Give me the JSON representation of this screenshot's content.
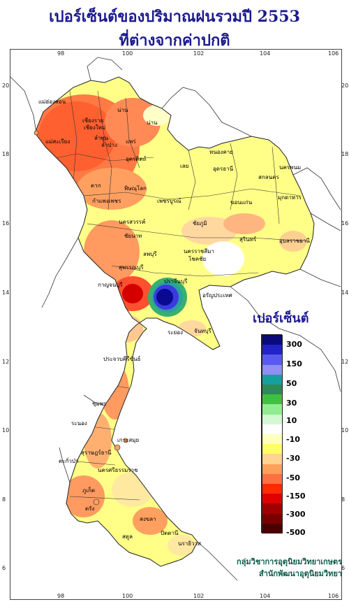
{
  "title": {
    "line1": "เปอร์เซ็นต์ของปริมาณฝนรวมปี  2553",
    "line2": "ที่ต่างจากค่าปกติ"
  },
  "axes": {
    "x_ticks": [
      "98",
      "100",
      "102",
      "104",
      "106"
    ],
    "y_ticks": [
      "20",
      "18",
      "16",
      "14",
      "12",
      "10",
      "8",
      "6"
    ]
  },
  "legend": {
    "title": "เปอร์เซ็นต์",
    "labels": [
      "300",
      "150",
      "50",
      "30",
      "10",
      "-10",
      "-30",
      "-50",
      "-150",
      "-300",
      "-500"
    ],
    "colors": [
      "#0a0a7a",
      "#2222c8",
      "#5a5af0",
      "#8f8ff5",
      "#14a19e",
      "#2e8b57",
      "#40c040",
      "#90ee90",
      "#d4f7d4",
      "#ffffff",
      "#ffffc0",
      "#ffff66",
      "#ffd28f",
      "#ffa05a",
      "#ff7040",
      "#ff2a00",
      "#e00000",
      "#a00000",
      "#7a0000",
      "#4a0000"
    ]
  },
  "provinces": [
    {
      "name": "แม่ฮ่องสอน"
    },
    {
      "name": "เชียงราย"
    },
    {
      "name": "น่าน"
    },
    {
      "name": "เชียงใหม่"
    },
    {
      "name": "ลำพูน"
    },
    {
      "name": "ลำปาง"
    },
    {
      "name": "แพร่"
    },
    {
      "name": "แม่สะเรียง"
    },
    {
      "name": "อุตรดิตถ์"
    },
    {
      "name": "หนองคาย"
    },
    {
      "name": "นครพนม"
    },
    {
      "name": "เลย"
    },
    {
      "name": "อุดรธานี"
    },
    {
      "name": "สกลนคร"
    },
    {
      "name": "ตาก"
    },
    {
      "name": "พิษณุโลก"
    },
    {
      "name": "มุกดาหาร"
    },
    {
      "name": "กำแพงเพชร"
    },
    {
      "name": "เพชรบูรณ์"
    },
    {
      "name": "ขอนแก่น"
    },
    {
      "name": "นครสวรรค์"
    },
    {
      "name": "ชัยภูมิ"
    },
    {
      "name": "อุบลราชธานี"
    },
    {
      "name": "ชัยนาท"
    },
    {
      "name": "สุรินทร์"
    },
    {
      "name": "ลพบุรี"
    },
    {
      "name": "นครราชสีมา"
    },
    {
      "name": "สุพรรณบุรี"
    },
    {
      "name": "โชคชัย"
    },
    {
      "name": "กาญจนบุรี"
    },
    {
      "name": "ปราจีนบุรี"
    },
    {
      "name": "อรัญประเทศ"
    },
    {
      "name": "ระยอง"
    },
    {
      "name": "จันทบุรี"
    },
    {
      "name": "ประจวบคีรีขันธ์"
    },
    {
      "name": "ชุมพร"
    },
    {
      "name": "ระนอง"
    },
    {
      "name": "เกาะสมุย"
    },
    {
      "name": "สุราษฎร์ธานี"
    },
    {
      "name": "ตะกั่วป่า"
    },
    {
      "name": "นครศรีธรรมราช"
    },
    {
      "name": "ภูเก็ต"
    },
    {
      "name": "ตรัง"
    },
    {
      "name": "สงขลา"
    },
    {
      "name": "ปัตตานี"
    },
    {
      "name": "สตูล"
    },
    {
      "name": "นราธิวาส"
    }
  ],
  "credit": {
    "line1": "กลุ่มวิชาการอุตุนิยมวิทยาเกษตร",
    "line2": "สำนักพัฒนาอุตุนิยมวิทยา"
  }
}
